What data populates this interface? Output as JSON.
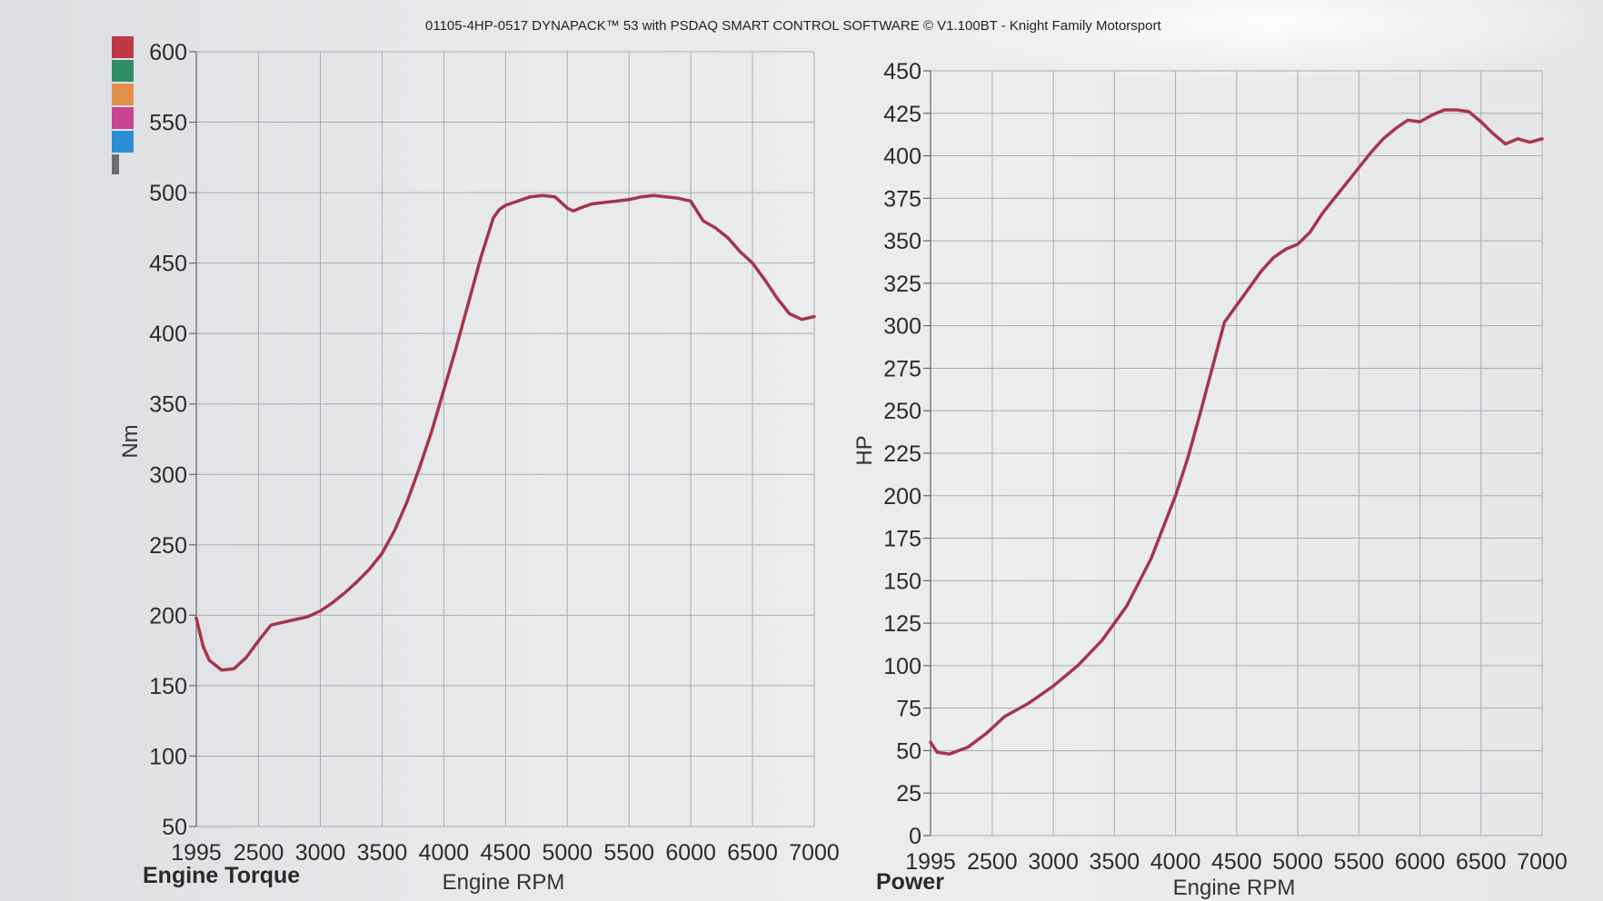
{
  "title": "01105-4HP-0517 DYNAPACK™ 53 with PSDAQ SMART CONTROL SOFTWARE © V1.100BT - Knight Family Motorsport",
  "legend_swatches": [
    {
      "name": "red-swatch",
      "color": "#c1374a"
    },
    {
      "name": "green-swatch",
      "color": "#2e8f67"
    },
    {
      "name": "orange-swatch",
      "color": "#e0904a"
    },
    {
      "name": "magenta-swatch",
      "color": "#c84592"
    },
    {
      "name": "blue-swatch",
      "color": "#2a8fd6"
    }
  ],
  "line_color": "#a5354f",
  "chart_data": [
    {
      "type": "line",
      "caption": "Engine Torque",
      "xlabel": "Engine RPM",
      "ylabel": "Nm",
      "xlim": [
        1995,
        7000
      ],
      "ylim": [
        50,
        600
      ],
      "xticks": [
        "1995",
        "2500",
        "3000",
        "3500",
        "4000",
        "4500",
        "5000",
        "5500",
        "6000",
        "6500",
        "7000"
      ],
      "xtick_values": [
        1995,
        2500,
        3000,
        3500,
        4000,
        4500,
        5000,
        5500,
        6000,
        6500,
        7000
      ],
      "yticks": [
        "50",
        "100",
        "150",
        "200",
        "250",
        "300",
        "350",
        "400",
        "450",
        "500",
        "550",
        "600"
      ],
      "ytick_values": [
        50,
        100,
        150,
        200,
        250,
        300,
        350,
        400,
        450,
        500,
        550,
        600
      ],
      "grid": true,
      "series": [
        {
          "x": [
            1995,
            2050,
            2100,
            2200,
            2300,
            2400,
            2500,
            2600,
            2700,
            2800,
            2900,
            3000,
            3100,
            3200,
            3300,
            3400,
            3500,
            3600,
            3700,
            3800,
            3900,
            4000,
            4100,
            4200,
            4300,
            4400,
            4450,
            4500,
            4600,
            4700,
            4800,
            4900,
            5000,
            5050,
            5100,
            5200,
            5300,
            5400,
            5500,
            5600,
            5700,
            5800,
            5900,
            6000,
            6100,
            6200,
            6300,
            6400,
            6500,
            6600,
            6700,
            6800,
            6900,
            7000
          ],
          "y": [
            198,
            178,
            168,
            161,
            162,
            170,
            182,
            193,
            195,
            197,
            199,
            203,
            209,
            216,
            224,
            233,
            244,
            260,
            280,
            304,
            330,
            360,
            390,
            422,
            454,
            482,
            488,
            491,
            494,
            497,
            498,
            497,
            489,
            487,
            489,
            492,
            493,
            494,
            495,
            497,
            498,
            497,
            496,
            494,
            480,
            475,
            468,
            458,
            450,
            438,
            425,
            414,
            410,
            412
          ]
        }
      ]
    },
    {
      "type": "line",
      "caption": "Power",
      "xlabel": "Engine RPM",
      "ylabel": "HP",
      "xlim": [
        1995,
        7000
      ],
      "ylim": [
        0,
        450
      ],
      "xticks": [
        "1995",
        "2500",
        "3000",
        "3500",
        "4000",
        "4500",
        "5000",
        "5500",
        "6000",
        "6500",
        "7000"
      ],
      "xtick_values": [
        1995,
        2500,
        3000,
        3500,
        4000,
        4500,
        5000,
        5500,
        6000,
        6500,
        7000
      ],
      "yticks": [
        "0",
        "25",
        "50",
        "75",
        "100",
        "125",
        "150",
        "175",
        "200",
        "225",
        "250",
        "275",
        "300",
        "325",
        "350",
        "375",
        "400",
        "425",
        "450"
      ],
      "ytick_values": [
        0,
        25,
        50,
        75,
        100,
        125,
        150,
        175,
        200,
        225,
        250,
        275,
        300,
        325,
        350,
        375,
        400,
        425,
        450
      ],
      "grid": true,
      "series": [
        {
          "x": [
            1995,
            2050,
            2150,
            2300,
            2450,
            2600,
            2800,
            3000,
            3200,
            3400,
            3600,
            3800,
            4000,
            4100,
            4200,
            4300,
            4400,
            4500,
            4600,
            4700,
            4800,
            4900,
            5000,
            5100,
            5200,
            5300,
            5400,
            5500,
            5600,
            5700,
            5800,
            5900,
            6000,
            6100,
            6200,
            6300,
            6400,
            6500,
            6600,
            6700,
            6800,
            6900,
            7000
          ],
          "y": [
            55,
            49,
            48,
            52,
            60,
            70,
            78,
            88,
            100,
            115,
            135,
            163,
            200,
            222,
            248,
            275,
            302,
            312,
            322,
            332,
            340,
            345,
            348,
            355,
            366,
            375,
            384,
            393,
            402,
            410,
            416,
            421,
            420,
            424,
            427,
            427,
            426,
            420,
            413,
            407,
            410,
            408,
            410
          ]
        }
      ]
    }
  ]
}
